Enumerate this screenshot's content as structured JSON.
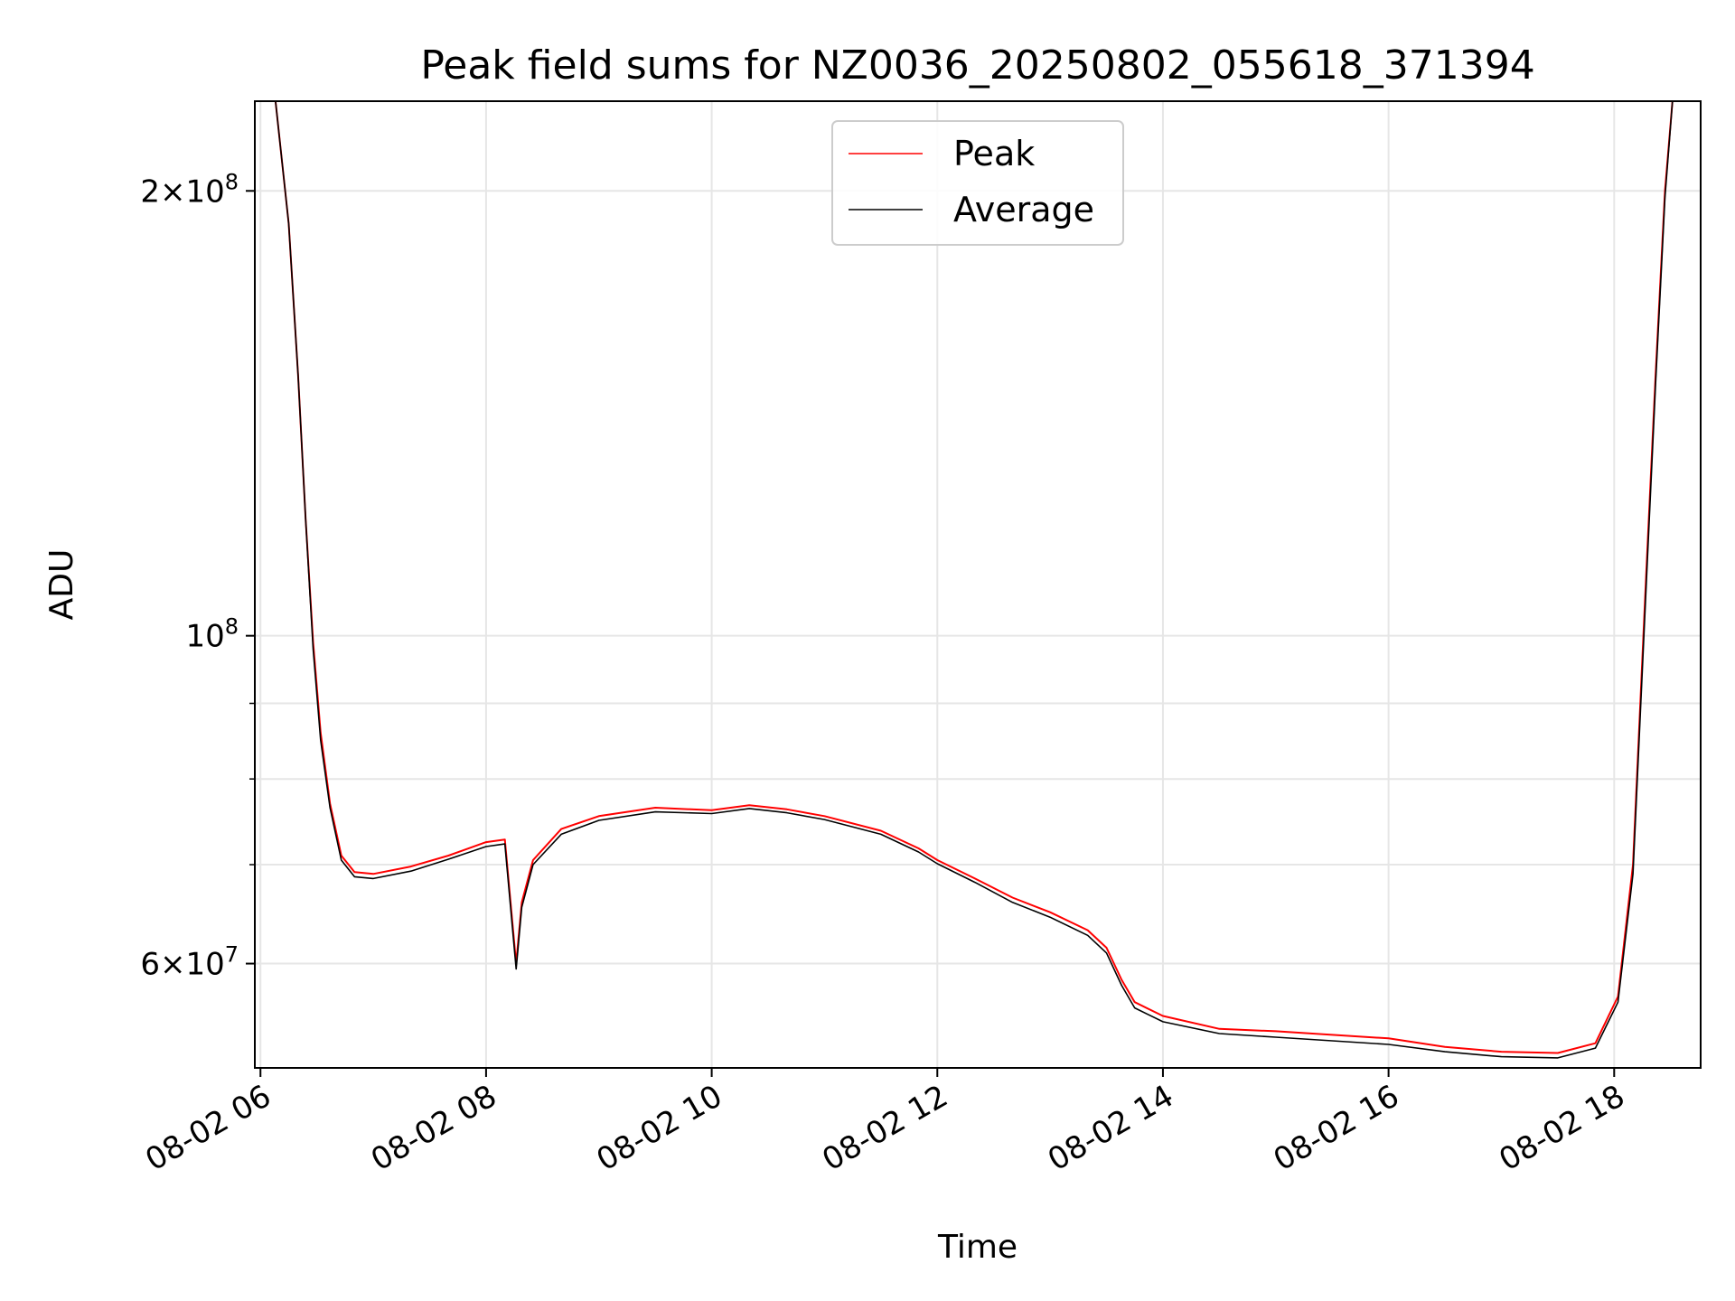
{
  "chart_data": {
    "type": "line",
    "title": "Peak field sums for NZ0036_20250802_055618_371394",
    "xlabel": "Time",
    "ylabel": "ADU",
    "yscale": "log",
    "xlim": [
      "08-02 05:57",
      "08-02 18:46"
    ],
    "ylim": [
      51000000,
      230000000
    ],
    "x_ticks": [
      "08-02 06",
      "08-02 08",
      "08-02 10",
      "08-02 12",
      "08-02 14",
      "08-02 16",
      "08-02 18"
    ],
    "y_ticks": [
      {
        "value": 60000000,
        "label": "6 × 10^7"
      },
      {
        "value": 100000000,
        "label": "10^8"
      },
      {
        "value": 200000000,
        "label": "2 × 10^8"
      }
    ],
    "grid": true,
    "legend_position": "upper center",
    "series": [
      {
        "name": "Peak",
        "color": "#ff0000",
        "points": [
          [
            "08-02 05:57",
            230000000
          ],
          [
            "08-02 06:08",
            230000000
          ],
          [
            "08-02 06:15",
            190000000
          ],
          [
            "08-02 06:20",
            150000000
          ],
          [
            "08-02 06:24",
            120000000
          ],
          [
            "08-02 06:28",
            99000000
          ],
          [
            "08-02 06:32",
            86000000
          ],
          [
            "08-02 06:37",
            77000000
          ],
          [
            "08-02 06:43",
            71000000
          ],
          [
            "08-02 06:50",
            69200000
          ],
          [
            "08-02 07:00",
            69000000
          ],
          [
            "08-02 07:20",
            69800000
          ],
          [
            "08-02 07:40",
            71000000
          ],
          [
            "08-02 08:00",
            72500000
          ],
          [
            "08-02 08:10",
            72800000
          ],
          [
            "08-02 08:14",
            64000000
          ],
          [
            "08-02 08:16",
            60000000
          ],
          [
            "08-02 08:19",
            66000000
          ],
          [
            "08-02 08:25",
            70500000
          ],
          [
            "08-02 08:40",
            74000000
          ],
          [
            "08-02 09:00",
            75500000
          ],
          [
            "08-02 09:30",
            76500000
          ],
          [
            "08-02 10:00",
            76200000
          ],
          [
            "08-02 10:20",
            76800000
          ],
          [
            "08-02 10:40",
            76300000
          ],
          [
            "08-02 11:00",
            75500000
          ],
          [
            "08-02 11:30",
            73800000
          ],
          [
            "08-02 11:50",
            71800000
          ],
          [
            "08-02 12:00",
            70500000
          ],
          [
            "08-02 12:20",
            68500000
          ],
          [
            "08-02 12:40",
            66500000
          ],
          [
            "08-02 13:00",
            65000000
          ],
          [
            "08-02 13:20",
            63200000
          ],
          [
            "08-02 13:30",
            61500000
          ],
          [
            "08-02 13:38",
            58500000
          ],
          [
            "08-02 13:45",
            56500000
          ],
          [
            "08-02 14:00",
            55300000
          ],
          [
            "08-02 14:30",
            54200000
          ],
          [
            "08-02 15:00",
            54000000
          ],
          [
            "08-02 15:30",
            53700000
          ],
          [
            "08-02 16:00",
            53400000
          ],
          [
            "08-02 16:30",
            52700000
          ],
          [
            "08-02 17:00",
            52300000
          ],
          [
            "08-02 17:30",
            52200000
          ],
          [
            "08-02 17:50",
            53000000
          ],
          [
            "08-02 18:02",
            57000000
          ],
          [
            "08-02 18:10",
            70000000
          ],
          [
            "08-02 18:17",
            110000000
          ],
          [
            "08-02 18:22",
            150000000
          ],
          [
            "08-02 18:27",
            200000000
          ],
          [
            "08-02 18:31",
            230000000
          ],
          [
            "08-02 18:46",
            230000000
          ]
        ]
      },
      {
        "name": "Average",
        "color": "#000000",
        "points": [
          [
            "08-02 05:57",
            230000000
          ],
          [
            "08-02 06:08",
            230000000
          ],
          [
            "08-02 06:15",
            190000000
          ],
          [
            "08-02 06:20",
            150000000
          ],
          [
            "08-02 06:24",
            120000000
          ],
          [
            "08-02 06:28",
            98000000
          ],
          [
            "08-02 06:32",
            85000000
          ],
          [
            "08-02 06:37",
            76500000
          ],
          [
            "08-02 06:43",
            70500000
          ],
          [
            "08-02 06:50",
            68700000
          ],
          [
            "08-02 07:00",
            68500000
          ],
          [
            "08-02 07:20",
            69300000
          ],
          [
            "08-02 07:40",
            70600000
          ],
          [
            "08-02 08:00",
            72000000
          ],
          [
            "08-02 08:10",
            72300000
          ],
          [
            "08-02 08:14",
            63500000
          ],
          [
            "08-02 08:16",
            59500000
          ],
          [
            "08-02 08:19",
            65500000
          ],
          [
            "08-02 08:25",
            70000000
          ],
          [
            "08-02 08:40",
            73400000
          ],
          [
            "08-02 09:00",
            75000000
          ],
          [
            "08-02 09:30",
            76000000
          ],
          [
            "08-02 10:00",
            75800000
          ],
          [
            "08-02 10:20",
            76400000
          ],
          [
            "08-02 10:40",
            75900000
          ],
          [
            "08-02 11:00",
            75100000
          ],
          [
            "08-02 11:30",
            73400000
          ],
          [
            "08-02 11:50",
            71400000
          ],
          [
            "08-02 12:00",
            70100000
          ],
          [
            "08-02 12:20",
            68100000
          ],
          [
            "08-02 12:40",
            66000000
          ],
          [
            "08-02 13:00",
            64500000
          ],
          [
            "08-02 13:20",
            62700000
          ],
          [
            "08-02 13:30",
            61000000
          ],
          [
            "08-02 13:38",
            58000000
          ],
          [
            "08-02 13:45",
            56000000
          ],
          [
            "08-02 14:00",
            54800000
          ],
          [
            "08-02 14:30",
            53800000
          ],
          [
            "08-02 15:00",
            53500000
          ],
          [
            "08-02 15:30",
            53200000
          ],
          [
            "08-02 16:00",
            52900000
          ],
          [
            "08-02 16:30",
            52300000
          ],
          [
            "08-02 17:00",
            51900000
          ],
          [
            "08-02 17:30",
            51800000
          ],
          [
            "08-02 17:50",
            52600000
          ],
          [
            "08-02 18:02",
            56500000
          ],
          [
            "08-02 18:10",
            69000000
          ],
          [
            "08-02 18:17",
            108000000
          ],
          [
            "08-02 18:22",
            148000000
          ],
          [
            "08-02 18:27",
            198000000
          ],
          [
            "08-02 18:31",
            230000000
          ],
          [
            "08-02 18:46",
            230000000
          ]
        ]
      }
    ]
  }
}
